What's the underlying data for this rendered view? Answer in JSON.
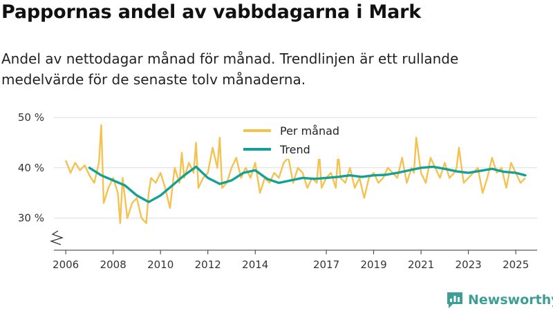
{
  "title": "Pappornas andel av vabbdagarna i Mark",
  "subtitle": "Andel av nettodagar månad för månad. Trendlinjen är ett rullande medelvärde för de senaste tolv månaderna.",
  "brand": "Newsworthy",
  "colors": {
    "monthly": "#f5c14f",
    "trend": "#13a196",
    "grid": "#dddddd",
    "brand": "#3d9e95"
  },
  "chart_data": {
    "type": "line",
    "x_unit": "year",
    "xlim": [
      2005.5,
      2025.9
    ],
    "ylim": [
      25,
      50
    ],
    "y_ticks": [
      {
        "value": 30,
        "label": "30 %"
      },
      {
        "value": 40,
        "label": "40 %"
      },
      {
        "value": 50,
        "label": "50 %"
      }
    ],
    "x_ticks": [
      {
        "value": 2006,
        "label": "2006"
      },
      {
        "value": 2008,
        "label": "2008"
      },
      {
        "value": 2010,
        "label": "2010"
      },
      {
        "value": 2012,
        "label": "2012"
      },
      {
        "value": 2014,
        "label": "2014"
      },
      {
        "value": 2017,
        "label": "2017"
      },
      {
        "value": 2019,
        "label": "2019"
      },
      {
        "value": 2021,
        "label": "2021"
      },
      {
        "value": 2023,
        "label": "2023"
      },
      {
        "value": 2025,
        "label": "2025"
      }
    ],
    "series": [
      {
        "name": "Per månad",
        "x": [
          2006.0,
          2006.2,
          2006.4,
          2006.6,
          2006.8,
          2007.0,
          2007.2,
          2007.4,
          2007.5,
          2007.6,
          2007.8,
          2008.0,
          2008.2,
          2008.3,
          2008.4,
          2008.6,
          2008.8,
          2009.0,
          2009.2,
          2009.4,
          2009.5,
          2009.6,
          2009.8,
          2010.0,
          2010.2,
          2010.4,
          2010.6,
          2010.8,
          2010.9,
          2011.0,
          2011.2,
          2011.4,
          2011.5,
          2011.6,
          2011.8,
          2012.0,
          2012.2,
          2012.4,
          2012.5,
          2012.6,
          2012.8,
          2013.0,
          2013.2,
          2013.4,
          2013.6,
          2013.8,
          2014.0,
          2014.2,
          2014.4,
          2014.6,
          2014.8,
          2015.0,
          2015.2,
          2015.4,
          2015.6,
          2015.8,
          2016.0,
          2016.2,
          2016.4,
          2016.6,
          2016.7,
          2016.8,
          2017.0,
          2017.2,
          2017.4,
          2017.5,
          2017.6,
          2017.8,
          2018.0,
          2018.2,
          2018.4,
          2018.6,
          2018.8,
          2019.0,
          2019.2,
          2019.4,
          2019.6,
          2019.8,
          2020.0,
          2020.2,
          2020.4,
          2020.6,
          2020.7,
          2020.8,
          2021.0,
          2021.2,
          2021.4,
          2021.6,
          2021.8,
          2022.0,
          2022.2,
          2022.4,
          2022.5,
          2022.6,
          2022.8,
          2023.0,
          2023.2,
          2023.4,
          2023.6,
          2023.8,
          2024.0,
          2024.2,
          2024.4,
          2024.5,
          2024.6,
          2024.8,
          2025.0,
          2025.2,
          2025.4
        ],
        "values": [
          41.5,
          39,
          41,
          39.5,
          40.5,
          38.5,
          37,
          41,
          48.5,
          33,
          36,
          38,
          35,
          29,
          38,
          30,
          33,
          34,
          30,
          29,
          35,
          38,
          37,
          39,
          36,
          32,
          40,
          37,
          43,
          38,
          41,
          39,
          45,
          36,
          38,
          39,
          44,
          40,
          46,
          36,
          37,
          40,
          42,
          38,
          40,
          38,
          41,
          35,
          38,
          37,
          39,
          38,
          41,
          42,
          37,
          40,
          39,
          36,
          38,
          37,
          43,
          36,
          38,
          39,
          36,
          43,
          38,
          37,
          40,
          36,
          38,
          34,
          38,
          39,
          37,
          38,
          40,
          39,
          38,
          42,
          37,
          40,
          39,
          46,
          39,
          37,
          42,
          40,
          38,
          41,
          38,
          39,
          40,
          44,
          37,
          38,
          39,
          40,
          35,
          38,
          42,
          39,
          40,
          38,
          36,
          41,
          39,
          37,
          38
        ]
      },
      {
        "name": "Trend",
        "x": [
          2007.0,
          2007.5,
          2008.0,
          2008.5,
          2009.0,
          2009.5,
          2010.0,
          2010.5,
          2011.0,
          2011.5,
          2012.0,
          2012.5,
          2013.0,
          2013.5,
          2014.0,
          2014.5,
          2015.0,
          2015.5,
          2016.0,
          2016.5,
          2017.0,
          2017.5,
          2018.0,
          2018.5,
          2019.0,
          2019.5,
          2020.0,
          2020.5,
          2021.0,
          2021.5,
          2022.0,
          2022.5,
          2023.0,
          2023.5,
          2024.0,
          2024.5,
          2025.0,
          2025.4
        ],
        "values": [
          40,
          38.5,
          37.5,
          36.5,
          34.5,
          33.2,
          34.5,
          36.5,
          38.5,
          40.2,
          38,
          36.8,
          37.5,
          39,
          39.5,
          37.8,
          37,
          37.5,
          38,
          37.8,
          38,
          38.2,
          38.5,
          38.2,
          38.5,
          38.6,
          39,
          39.5,
          40,
          40.2,
          39.8,
          39.3,
          39,
          39.4,
          39.8,
          39.2,
          39,
          38.5
        ]
      }
    ]
  }
}
